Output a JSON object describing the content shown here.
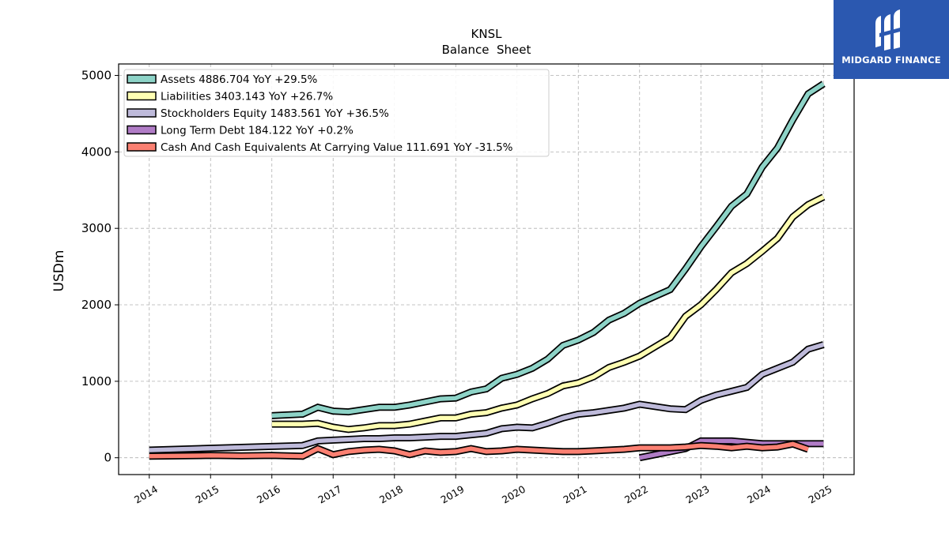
{
  "chart_data": {
    "type": "line",
    "title": "KNSL",
    "subtitle": "Balance  Sheet",
    "ylabel": "USDm",
    "xlabel": "",
    "xlim": [
      2013.5,
      2025.5
    ],
    "ylim": [
      -220,
      5150
    ],
    "yticks": [
      0,
      1000,
      2000,
      3000,
      4000,
      5000
    ],
    "xticks": [
      2014,
      2015,
      2016,
      2017,
      2018,
      2019,
      2020,
      2021,
      2022,
      2023,
      2024,
      2025
    ],
    "grid": true,
    "legend_position": "top-left",
    "series": [
      {
        "name": "Assets  4886.704 YoY +29.5%",
        "color": "#8dd3c7",
        "x": [
          2016.0,
          2016.5,
          2016.75,
          2017.0,
          2017.25,
          2017.5,
          2017.75,
          2018.0,
          2018.25,
          2018.5,
          2018.75,
          2019.0,
          2019.25,
          2019.5,
          2019.75,
          2020.0,
          2020.25,
          2020.5,
          2020.75,
          2021.0,
          2021.25,
          2021.5,
          2021.75,
          2022.0,
          2022.25,
          2022.5,
          2022.75,
          2023.0,
          2023.25,
          2023.5,
          2023.75,
          2024.0,
          2024.25,
          2024.5,
          2024.75,
          2025.0
        ],
        "y": [
          550,
          570,
          660,
          610,
          600,
          630,
          660,
          660,
          690,
          730,
          770,
          780,
          860,
          900,
          1040,
          1090,
          1170,
          1290,
          1470,
          1540,
          1640,
          1800,
          1890,
          2020,
          2110,
          2200,
          2470,
          2760,
          3020,
          3290,
          3450,
          3800,
          4050,
          4420,
          4760,
          4890
        ]
      },
      {
        "name": "Liabilities  3403.143 YoY +26.7%",
        "color": "#ffffb3",
        "x": [
          2016.0,
          2016.5,
          2016.75,
          2017.0,
          2017.25,
          2017.5,
          2017.75,
          2018.0,
          2018.25,
          2018.5,
          2018.75,
          2019.0,
          2019.25,
          2019.5,
          2019.75,
          2020.0,
          2020.25,
          2020.5,
          2020.75,
          2021.0,
          2021.25,
          2021.5,
          2021.75,
          2022.0,
          2022.25,
          2022.5,
          2022.75,
          2023.0,
          2023.25,
          2023.5,
          2023.75,
          2024.0,
          2024.25,
          2024.5,
          2024.75,
          2025.0
        ],
        "y": [
          440,
          440,
          450,
          400,
          370,
          390,
          420,
          420,
          440,
          480,
          520,
          520,
          570,
          590,
          650,
          690,
          770,
          840,
          940,
          980,
          1060,
          1180,
          1250,
          1330,
          1450,
          1570,
          1850,
          2000,
          2200,
          2420,
          2540,
          2700,
          2870,
          3150,
          3310,
          3410
        ]
      },
      {
        "name": "Stockholders Equity  1483.561 YoY +36.5%",
        "color": "#bebada",
        "x": [
          2014.0,
          2016.5,
          2016.75,
          2017.0,
          2017.25,
          2017.5,
          2017.75,
          2018.0,
          2018.25,
          2018.5,
          2018.75,
          2019.0,
          2019.25,
          2019.5,
          2019.75,
          2020.0,
          2020.25,
          2020.5,
          2020.75,
          2021.0,
          2021.25,
          2021.5,
          2021.75,
          2022.0,
          2022.25,
          2022.5,
          2022.75,
          2023.0,
          2023.25,
          2023.5,
          2023.75,
          2024.0,
          2024.25,
          2024.5,
          2024.75,
          2025.0
        ],
        "y": [
          100,
          160,
          220,
          230,
          240,
          250,
          250,
          260,
          260,
          270,
          280,
          280,
          300,
          320,
          380,
          400,
          390,
          450,
          520,
          570,
          590,
          620,
          650,
          700,
          670,
          640,
          630,
          750,
          820,
          870,
          920,
          1090,
          1170,
          1250,
          1420,
          1480
        ]
      },
      {
        "name": "Long Term Debt  184.122 YoY +0.2%",
        "color": "#b07cc6",
        "x": [
          2022.0,
          2022.75,
          2023.0,
          2023.5,
          2024.0,
          2025.0
        ],
        "y": [
          0,
          120,
          220,
          220,
          184,
          184
        ]
      },
      {
        "name": "Cash And Cash Equivalents At Carrying Value  111.691 YoY -31.5%",
        "color": "#fb8072",
        "x": [
          2014.0,
          2015.0,
          2015.5,
          2016.0,
          2016.5,
          2016.75,
          2017.0,
          2017.25,
          2017.5,
          2017.75,
          2018.0,
          2018.25,
          2018.5,
          2018.75,
          2019.0,
          2019.25,
          2019.5,
          2019.75,
          2020.0,
          2020.25,
          2020.5,
          2020.75,
          2021.0,
          2021.25,
          2021.5,
          2021.75,
          2022.0,
          2022.25,
          2022.5,
          2022.75,
          2023.0,
          2023.25,
          2023.5,
          2023.75,
          2024.0,
          2024.25,
          2024.5,
          2024.75
        ],
        "y": [
          20,
          30,
          25,
          30,
          20,
          120,
          40,
          80,
          100,
          110,
          90,
          40,
          90,
          70,
          80,
          120,
          80,
          90,
          110,
          100,
          90,
          80,
          80,
          90,
          100,
          110,
          130,
          130,
          130,
          140,
          160,
          150,
          130,
          150,
          130,
          140,
          180,
          110
        ]
      }
    ]
  },
  "logo": {
    "text": "MIDGARD FINANCE",
    "background": "#2b58b0"
  }
}
